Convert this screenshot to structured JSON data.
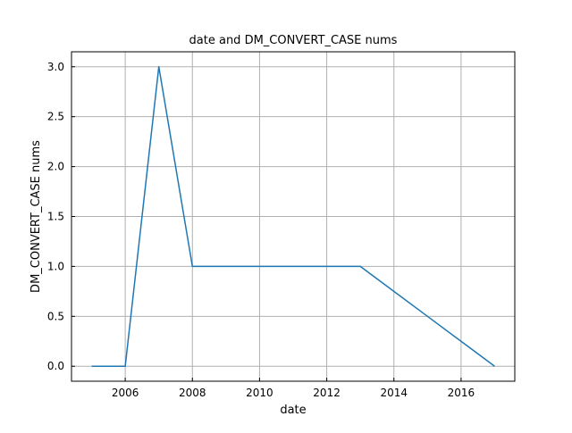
{
  "chart_data": {
    "type": "line",
    "title": "date and DM_CONVERT_CASE nums",
    "xlabel": "date",
    "ylabel": "DM_CONVERT_CASE nums",
    "x": [
      2005,
      2006,
      2007,
      2008,
      2009,
      2010,
      2011,
      2012,
      2013,
      2014,
      2015,
      2016,
      2017
    ],
    "series": [
      {
        "values": [
          0,
          0,
          3,
          1,
          1,
          1,
          1,
          1,
          1,
          0.75,
          0.5,
          0.25,
          0
        ]
      }
    ],
    "xticks": [
      2006,
      2008,
      2010,
      2012,
      2014,
      2016
    ],
    "xtick_labels": [
      "2006",
      "2008",
      "2010",
      "2012",
      "2014",
      "2016"
    ],
    "yticks": [
      0.0,
      0.5,
      1.0,
      1.5,
      2.0,
      2.5,
      3.0
    ],
    "ytick_labels": [
      "0.0",
      "0.5",
      "1.0",
      "1.5",
      "2.0",
      "2.5",
      "3.0"
    ],
    "xlim": [
      2004.4,
      2017.6
    ],
    "ylim": [
      -0.15,
      3.15
    ],
    "grid": true,
    "colors": {
      "line": "#1f77b4",
      "grid": "#b0b0b0"
    }
  }
}
